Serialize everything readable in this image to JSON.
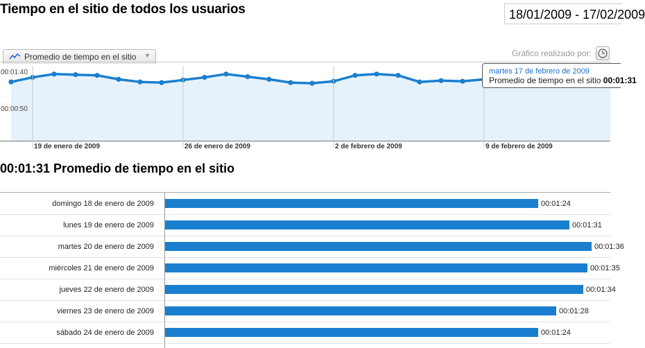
{
  "header": {
    "title": "Tiempo en el sitio de todos los usuarios",
    "date_range": "18/01/2009 - 17/02/2009"
  },
  "metric_tab": {
    "label": "Promedio de tiempo en el sitio",
    "icon": "line-chart-icon"
  },
  "chart_by": {
    "label": "Gráfico realizado por:",
    "icon": "clock-icon"
  },
  "tooltip": {
    "date": "martes 17 de febrero de 2009",
    "metric": "Promedio de tiempo en el sitio",
    "value": "00:01:31"
  },
  "colors": {
    "line": "#1a7fcf",
    "area": "#e6f2fb",
    "bar": "#1a7fcf"
  },
  "chart_data": {
    "type": "area",
    "y_tick_labels": [
      "00:01:40",
      "00:00:50"
    ],
    "x_tick_labels": [
      "19 de enero de 2009",
      "26 de enero de 2009",
      "2 de febrero de 2009",
      "9 de febrero de 2009"
    ],
    "dates": [
      "2009-01-18",
      "2009-01-19",
      "2009-01-20",
      "2009-01-21",
      "2009-01-22",
      "2009-01-23",
      "2009-01-24",
      "2009-01-25",
      "2009-01-26",
      "2009-01-27",
      "2009-01-28",
      "2009-01-29",
      "2009-01-30",
      "2009-01-31",
      "2009-02-01",
      "2009-02-02",
      "2009-02-03",
      "2009-02-04",
      "2009-02-05",
      "2009-02-06",
      "2009-02-07",
      "2009-02-08",
      "2009-02-09"
    ],
    "values": [
      84,
      91,
      96,
      95,
      94,
      88,
      84,
      83,
      87,
      91,
      96,
      92,
      88,
      83,
      82,
      85,
      94,
      96,
      94,
      84,
      86,
      85,
      88
    ],
    "y_unit": "seconds",
    "grid": true
  },
  "section": {
    "title": "00:01:31 Promedio de tiempo en el sitio"
  },
  "daily_table": {
    "max_seconds": 100,
    "rows": [
      {
        "label": "domingo 18 de enero de 2009",
        "value": "00:01:24",
        "seconds": 84
      },
      {
        "label": "lunes 19 de enero de 2009",
        "value": "00:01:31",
        "seconds": 91
      },
      {
        "label": "martes 20 de enero de 2009",
        "value": "00:01:36",
        "seconds": 96
      },
      {
        "label": "miércoles 21 de enero de 2009",
        "value": "00:01:35",
        "seconds": 95
      },
      {
        "label": "jueves 22 de enero de 2009",
        "value": "00:01:34",
        "seconds": 94
      },
      {
        "label": "viernes 23 de enero de 2009",
        "value": "00:01:28",
        "seconds": 88
      },
      {
        "label": "sábado 24 de enero de 2009",
        "value": "00:01:24",
        "seconds": 84
      }
    ]
  }
}
